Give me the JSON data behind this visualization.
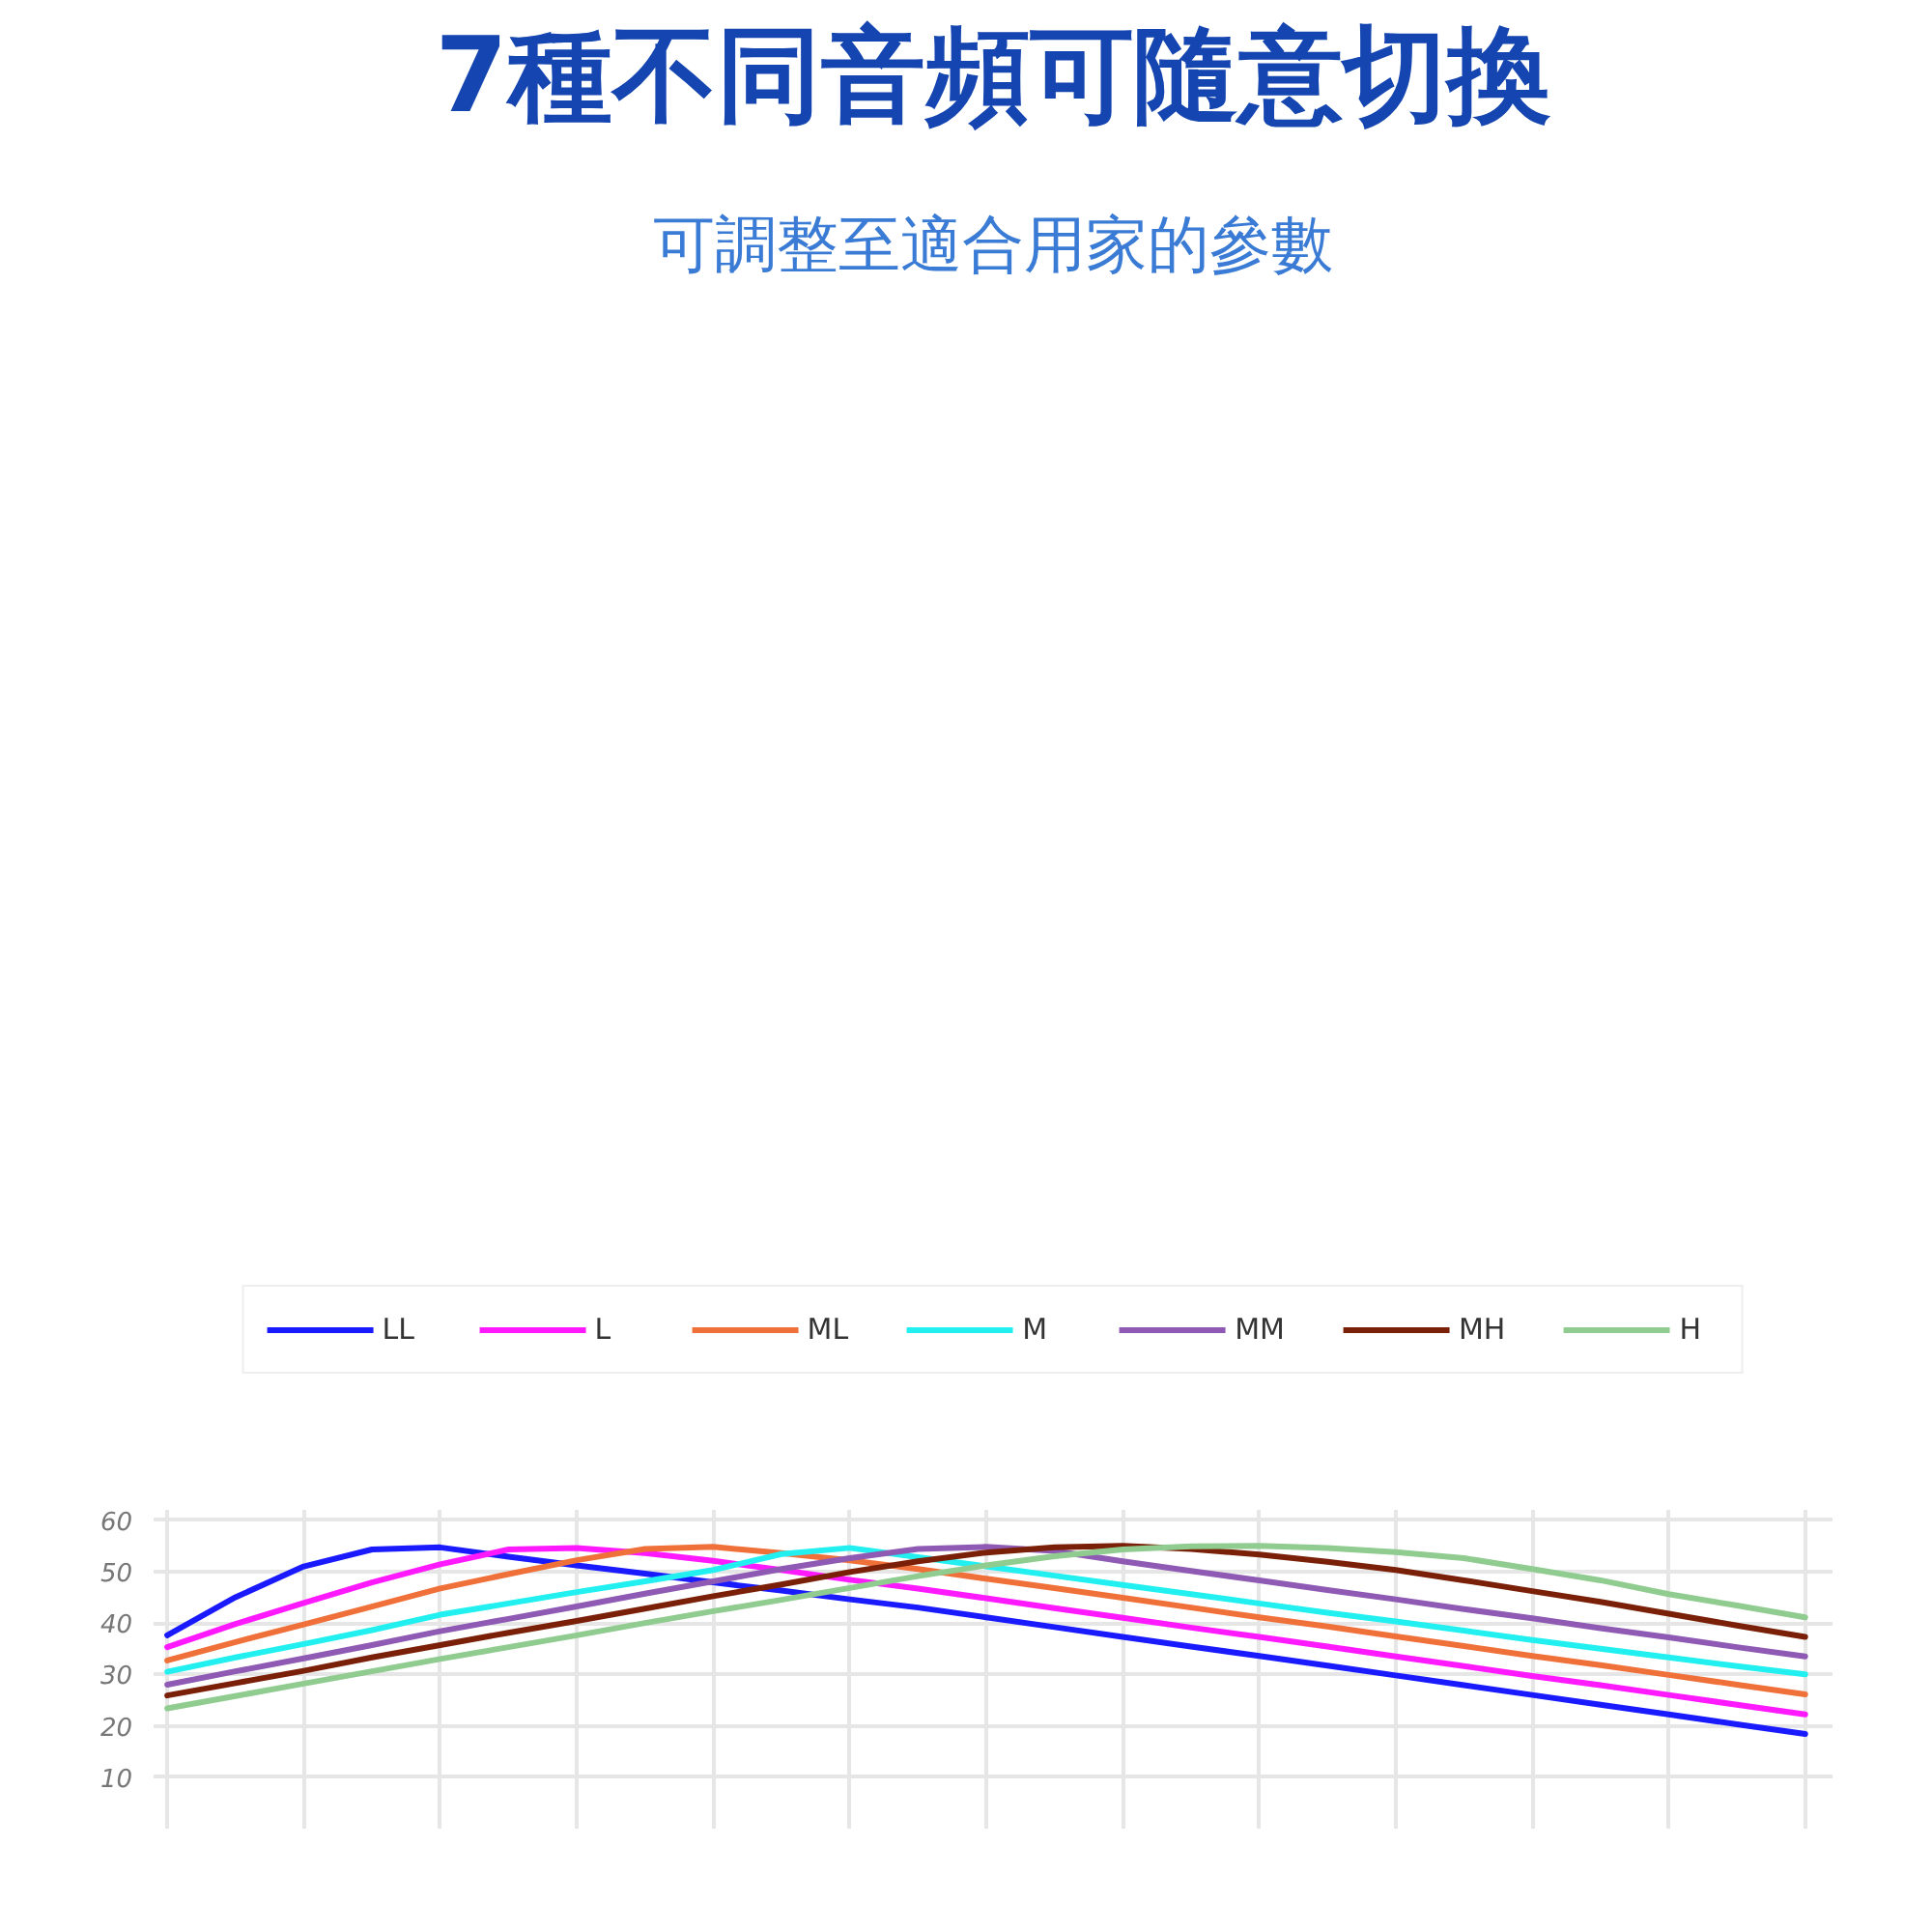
{
  "chart_data": {
    "type": "line",
    "title": "7種不同音頻可隨意切換",
    "subtitle": "可調整至適合用家的參數",
    "categories": [
      null,
      null,
      null,
      null,
      null,
      null,
      null,
      null,
      null,
      null,
      null,
      null,
      null,
      null,
      null,
      null,
      null,
      null,
      null,
      null,
      null,
      null,
      null,
      null,
      null
    ],
    "series": [
      {
        "name": "LL",
        "color": "#1a1aff",
        "values": [
          37.6,
          45.0,
          51.0,
          54.3,
          54.7,
          52.9,
          51.2,
          49.6,
          47.9,
          46.3,
          44.6,
          43.0,
          41.1,
          39.2,
          37.3,
          35.4,
          33.6,
          31.7,
          29.8,
          27.9,
          26.0,
          24.1,
          22.2,
          20.3,
          18.4
        ]
      },
      {
        "name": "L",
        "color": "#ff19ff",
        "values": [
          35.3,
          39.8,
          43.9,
          47.9,
          51.4,
          54.3,
          54.6,
          53.6,
          52.1,
          50.3,
          48.4,
          46.7,
          44.8,
          42.9,
          41.0,
          39.1,
          37.3,
          35.4,
          33.5,
          31.6,
          29.7,
          27.9,
          26.0,
          24.1,
          22.2
        ]
      },
      {
        "name": "ML",
        "color": "#f0703a",
        "values": [
          32.7,
          36.3,
          39.7,
          43.2,
          46.7,
          49.5,
          52.2,
          54.4,
          54.8,
          53.6,
          52.2,
          50.5,
          48.6,
          46.8,
          44.9,
          43.0,
          41.1,
          39.3,
          37.4,
          35.5,
          33.6,
          31.8,
          29.9,
          28.0,
          26.1
        ]
      },
      {
        "name": "M",
        "color": "#22f0f0",
        "values": [
          30.5,
          33.3,
          35.9,
          38.6,
          41.6,
          43.8,
          46.0,
          48.1,
          50.3,
          53.4,
          54.6,
          52.8,
          51.0,
          49.2,
          47.4,
          45.6,
          43.8,
          42.0,
          40.3,
          38.5,
          36.7,
          35.0,
          33.3,
          31.6,
          30.0
        ]
      },
      {
        "name": "MM",
        "color": "#8e5ab4",
        "values": [
          28.0,
          30.6,
          33.1,
          35.7,
          38.4,
          40.8,
          43.2,
          45.7,
          48.1,
          50.5,
          52.6,
          54.4,
          54.8,
          54.0,
          52.0,
          50.1,
          48.3,
          46.4,
          44.6,
          42.7,
          40.9,
          39.0,
          37.2,
          35.3,
          33.5
        ]
      },
      {
        "name": "MH",
        "color": "#7a2008",
        "values": [
          25.9,
          28.3,
          30.7,
          33.3,
          35.7,
          38.1,
          40.4,
          42.8,
          45.2,
          47.5,
          49.9,
          52.0,
          53.7,
          54.7,
          55.0,
          54.4,
          53.3,
          51.9,
          50.3,
          48.3,
          46.2,
          44.1,
          41.8,
          39.5,
          37.3
        ]
      },
      {
        "name": "H",
        "color": "#90cc90",
        "values": [
          23.4,
          25.8,
          28.2,
          30.6,
          33.0,
          35.3,
          37.6,
          40.0,
          42.3,
          44.5,
          46.8,
          49.1,
          51.2,
          53.0,
          54.3,
          54.9,
          55.0,
          54.6,
          53.8,
          52.6,
          50.5,
          48.3,
          45.6,
          43.4,
          41.1
        ]
      }
    ],
    "ylim": [
      0,
      62
    ],
    "yticks": [
      10,
      20,
      30,
      40,
      50,
      60
    ],
    "grid": true,
    "legend": "top",
    "tick_labels": "y",
    "line_style": "solid"
  }
}
